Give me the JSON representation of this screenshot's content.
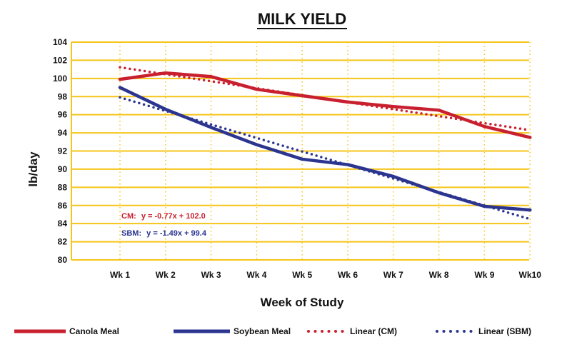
{
  "chart_data": {
    "type": "line",
    "title": "MILK YIELD",
    "xlabel": "Week of Study",
    "ylabel": "lb/day",
    "categories": [
      "Wk 1",
      "Wk 2",
      "Wk 3",
      "Wk 4",
      "Wk 5",
      "Wk 6",
      "Wk 7",
      "Wk 8",
      "Wk 9",
      "Wk10"
    ],
    "ylim": [
      80,
      104
    ],
    "yticks": [
      "80",
      "82",
      "84",
      "86",
      "88",
      "90",
      "92",
      "94",
      "96",
      "98",
      "100",
      "102",
      "104"
    ],
    "grid": true,
    "series": [
      {
        "name": "Canola Meal",
        "color": "#c8202f",
        "values": [
          99.9,
          100.6,
          100.2,
          98.8,
          98.1,
          97.4,
          96.9,
          96.5,
          94.7,
          93.5
        ]
      },
      {
        "name": "Soybean Meal",
        "color": "#2b3590",
        "values": [
          99.0,
          96.6,
          94.6,
          92.7,
          91.1,
          90.5,
          89.2,
          87.4,
          85.9,
          85.5
        ]
      }
    ],
    "trendlines": [
      {
        "name": "Linear (CM)",
        "color": "#c8202f",
        "slope": -0.77,
        "intercept": 102.0,
        "equation_label": "CM:",
        "equation": "y = -0.77x + 102.0"
      },
      {
        "name": "Linear (SBM)",
        "color": "#2b3590",
        "slope": -1.49,
        "intercept": 99.4,
        "equation_label": "SBM:",
        "equation": "y = -1.49x + 99.4"
      }
    ],
    "colors": {
      "grid": "#f5c518",
      "canola": "#c8202f",
      "soybean": "#2b3590"
    },
    "legend_position": "bottom"
  }
}
